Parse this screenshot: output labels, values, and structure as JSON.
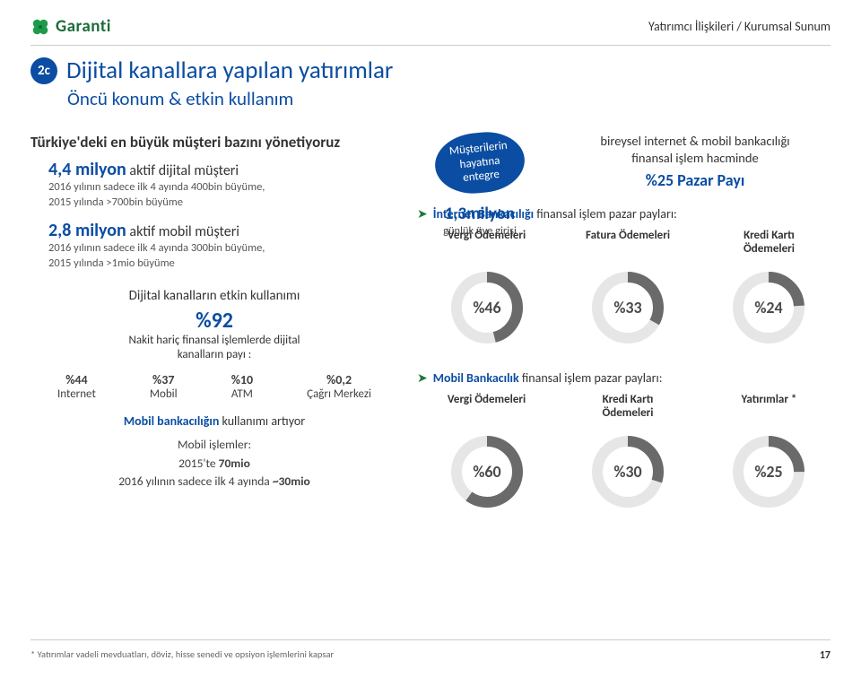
{
  "header": {
    "brand": "Garanti",
    "right": "Yatırımcı İlişkileri / Kurumsal Sunum"
  },
  "title": {
    "badge": "2c",
    "main": "Dijital kanallara yapılan yatırımlar",
    "sub": "Öncü konum & etkin kullanım"
  },
  "left": {
    "heading": "Türkiye'deki en büyük müşteri bazını yönetiyoruz",
    "stat1_num": "4,4 milyon",
    "stat1_txt": " aktif dijital müşteri",
    "stat1_detail": "2016 yılının sadece ilk 4 ayında 400bin büyüme,\n2015 yılında >700bin büyüme",
    "stat2_num": "2,8 milyon",
    "stat2_txt": " aktif mobil müşteri",
    "stat2_detail": "2016 yılının sadece ilk 4 ayında 300bin büyüme,\n2015 yılında >1mio büyüme",
    "section_label": "Dijital kanalların etkin kullanımı",
    "big_pct": "%92",
    "pct_desc": "Nakit hariç finansal işlemlerde dijital\nkanalların payı :",
    "channels": [
      {
        "pct": "%44",
        "name": "Internet"
      },
      {
        "pct": "%37",
        "name": "Mobil"
      },
      {
        "pct": "%10",
        "name": "ATM"
      },
      {
        "pct": "%0,2",
        "name": "Çağrı Merkezi"
      }
    ],
    "mobil_hl": "Mobil bankacılığın",
    "mobil_rest": " kullanımı artıyor",
    "mobil_stats_title": "Mobil işlemler:",
    "mobil_stats_l1_a": "2015'te ",
    "mobil_stats_l1_b": "70mio",
    "mobil_stats_l2_a": "2016 yılının sadece ilk 4 ayında ",
    "mobil_stats_l2_b": "~30mio"
  },
  "mid": {
    "pill": "Müşterilerin hayatına entegre",
    "num": "1,3milyon",
    "desc": "günlük üye girişi"
  },
  "right": {
    "head1": "bireysel internet & mobil bankacılığı\nfinansal işlem hacminde",
    "head2": "%25 Pazar Payı",
    "bullet1_hl": "İnternet Bankacılığı",
    "bullet1_rest": " finansal işlem pazar payları:",
    "cols1": [
      "Vergi Ödemeleri",
      "Fatura Ödemeleri",
      "Kredi Kartı\nÖdemeleri"
    ],
    "rings1": [
      {
        "pct": 46,
        "label": "%46",
        "color": "#6a6a6a"
      },
      {
        "pct": 33,
        "label": "%33",
        "color": "#6a6a6a"
      },
      {
        "pct": 24,
        "label": "%24",
        "color": "#6a6a6a"
      }
    ],
    "bullet2_hl": "Mobil Bankacılık",
    "bullet2_rest": " finansal işlem pazar payları:",
    "cols2": [
      "Vergi Ödemeleri",
      "Kredi Kartı\nÖdemeleri",
      "Yatırımlar *"
    ],
    "rings2": [
      {
        "pct": 60,
        "label": "%60",
        "color": "#6a6a6a"
      },
      {
        "pct": 30,
        "label": "%30",
        "color": "#6a6a6a"
      },
      {
        "pct": 25,
        "label": "%25",
        "color": "#6a6a6a"
      }
    ]
  },
  "ring_style": {
    "radius": 34,
    "stroke_width": 12,
    "track_color": "#e6e6e6",
    "label_fontsize": 18,
    "label_color": "#4a4a4a"
  },
  "colors": {
    "brand_green": "#1e6b3a",
    "accent_blue": "#0b4da2",
    "text": "#3f3f3f"
  },
  "footer": {
    "note": "* Yatırımlar vadeli mevduatları, döviz, hisse senedi ve opsiyon işlemlerini kapsar",
    "page": "17"
  }
}
